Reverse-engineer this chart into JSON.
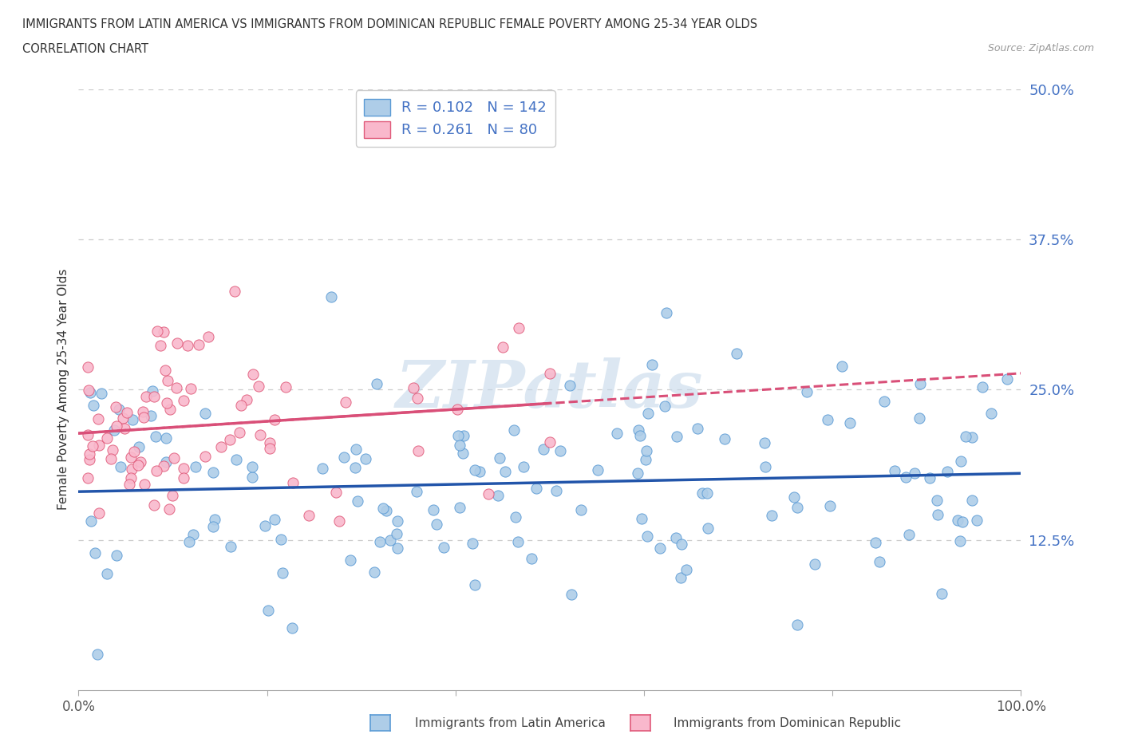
{
  "title_line1": "IMMIGRANTS FROM LATIN AMERICA VS IMMIGRANTS FROM DOMINICAN REPUBLIC FEMALE POVERTY AMONG 25-34 YEAR OLDS",
  "title_line2": "CORRELATION CHART",
  "source_text": "Source: ZipAtlas.com",
  "ylabel": "Female Poverty Among 25-34 Year Olds",
  "xlim": [
    0,
    100
  ],
  "ylim": [
    0,
    50
  ],
  "yticks": [
    0,
    12.5,
    25.0,
    37.5,
    50.0
  ],
  "legend_label1": "Immigrants from Latin America",
  "legend_label2": "Immigrants from Dominican Republic",
  "R1": 0.102,
  "N1": 142,
  "R2": 0.261,
  "N2": 80,
  "color1": "#aecde8",
  "color2": "#f9b8cc",
  "edge_color1": "#5b9bd5",
  "edge_color2": "#e05a7a",
  "line_color1": "#2255aa",
  "line_color2": "#d94f78",
  "watermark": "ZIPatlas",
  "watermark_color": "#c5d8ea",
  "background_color": "#ffffff",
  "tick_color": "#4472c4",
  "grid_color": "#cccccc"
}
